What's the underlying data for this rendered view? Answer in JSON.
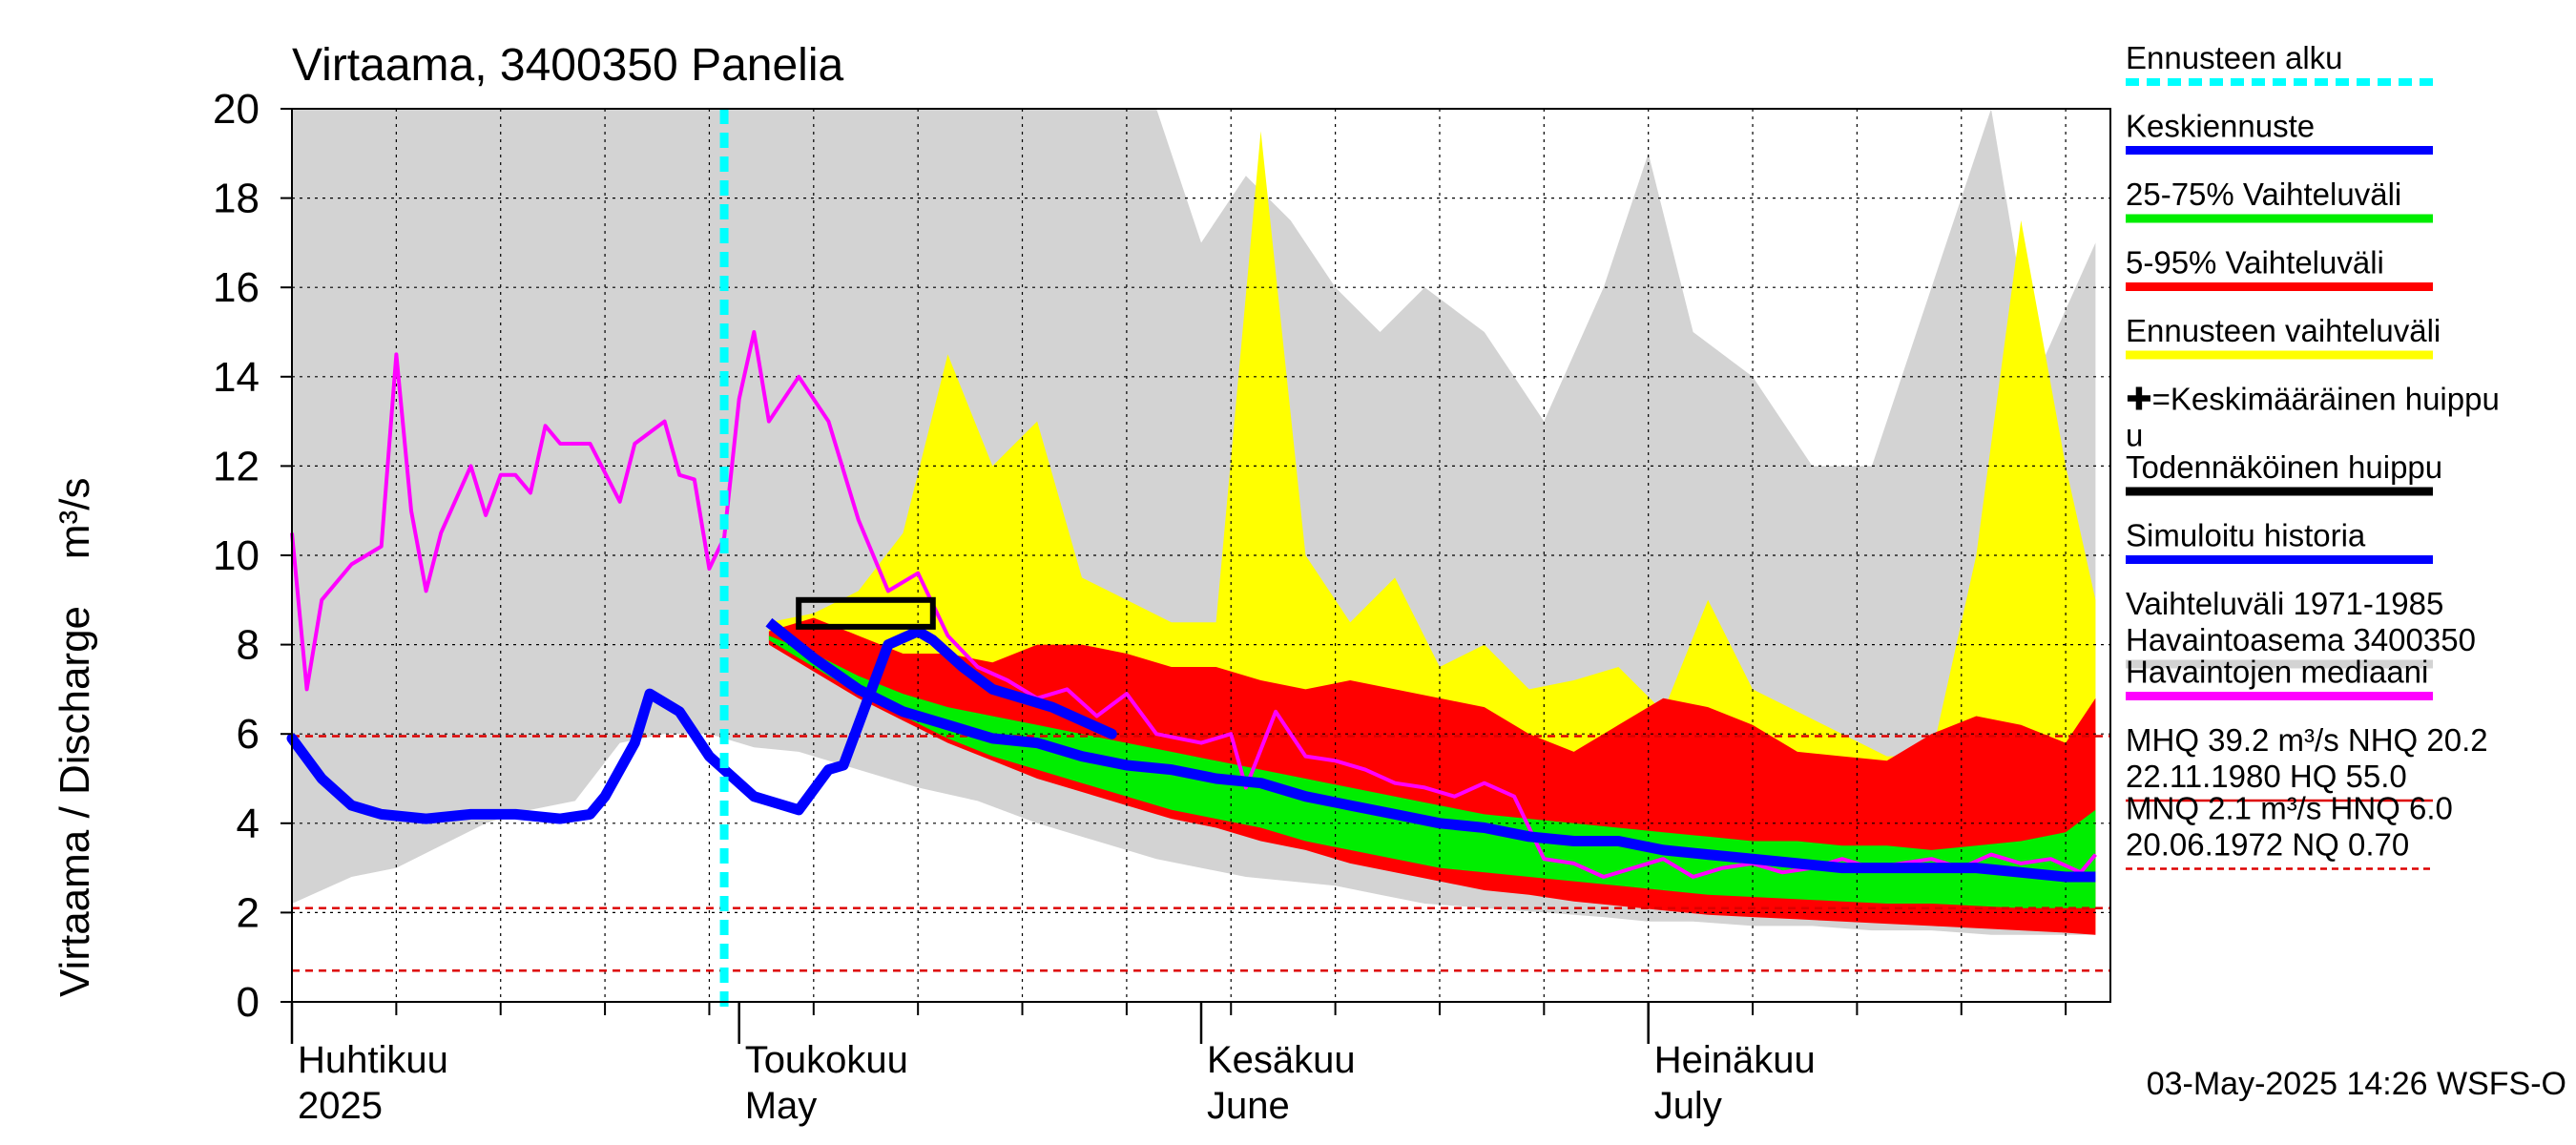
{
  "chart_data": {
    "type": "area",
    "title": "Virtaama, 3400350 Panelia",
    "ylabel": "Virtaama / Discharge    m³/s",
    "ylim": [
      0,
      20
    ],
    "yticks": [
      0,
      2,
      4,
      6,
      8,
      10,
      12,
      14,
      16,
      18,
      20
    ],
    "xlim": [
      "2025-04-01",
      "2025-07-31"
    ],
    "month_labels": [
      {
        "date": "2025-04-01",
        "fi": "Huhtikuu",
        "en": "2025"
      },
      {
        "date": "2025-05-01",
        "fi": "Toukokuu",
        "en": "May"
      },
      {
        "date": "2025-06-01",
        "fi": "Kesäkuu",
        "en": "June"
      },
      {
        "date": "2025-07-01",
        "fi": "Heinäkuu",
        "en": "July"
      }
    ],
    "forecast_start": "2025-04-30",
    "reference_lines": [
      5.95,
      2.1,
      0.7
    ],
    "probable_peak_box": {
      "x_start": "2025-05-05",
      "x_end": "2025-05-14",
      "y_low": 8.4,
      "y_high": 9.0
    },
    "colors": {
      "history_range": "#d3d3d3",
      "forecast_range": "#ffff00",
      "p5_95": "#ff0000",
      "p25_75": "#00ee00",
      "mean_forecast": "#0000ff",
      "median_obs": "#ff00ff",
      "forecast_start": "#00ffff",
      "reference": "#dd0000",
      "probable_peak": "#000000"
    },
    "series": [
      {
        "name": "Vaihteluväli 1971-1985 Havaintoasema 3400350",
        "role": "history_range",
        "x": [
          "2025-04-01",
          "2025-04-05",
          "2025-04-08",
          "2025-04-11",
          "2025-04-14",
          "2025-04-17",
          "2025-04-20",
          "2025-04-23",
          "2025-04-26",
          "2025-04-29",
          "2025-05-02",
          "2025-05-05",
          "2025-05-09",
          "2025-05-13",
          "2025-05-17",
          "2025-05-21",
          "2025-05-25",
          "2025-05-29",
          "2025-06-01",
          "2025-06-04",
          "2025-06-07",
          "2025-06-10",
          "2025-06-13",
          "2025-06-16",
          "2025-06-20",
          "2025-06-24",
          "2025-06-28",
          "2025-07-01",
          "2025-07-04",
          "2025-07-08",
          "2025-07-12",
          "2025-07-16",
          "2025-07-20",
          "2025-07-24",
          "2025-07-27",
          "2025-07-31"
        ],
        "upper": [
          20,
          20,
          20,
          20,
          20,
          20,
          20,
          20,
          20,
          20,
          20,
          20,
          20,
          20,
          20,
          20,
          20,
          20,
          17,
          18.5,
          17.5,
          16,
          15,
          16,
          15,
          13,
          16,
          19,
          15,
          14,
          12,
          12,
          16,
          20,
          14,
          17
        ],
        "lower": [
          2.2,
          2.8,
          3.0,
          3.5,
          4.0,
          4.3,
          4.5,
          5.8,
          6.0,
          6.0,
          5.7,
          5.6,
          5.2,
          4.8,
          4.5,
          4.0,
          3.6,
          3.2,
          3.0,
          2.8,
          2.7,
          2.6,
          2.4,
          2.2,
          2.1,
          2.0,
          1.9,
          1.8,
          1.8,
          1.7,
          1.7,
          1.6,
          1.6,
          1.5,
          1.5,
          1.5
        ]
      },
      {
        "name": "Ennusteen vaihteluväli",
        "role": "forecast_range",
        "x": [
          "2025-05-03",
          "2025-05-06",
          "2025-05-09",
          "2025-05-12",
          "2025-05-15",
          "2025-05-18",
          "2025-05-21",
          "2025-05-24",
          "2025-05-27",
          "2025-05-30",
          "2025-06-02",
          "2025-06-05",
          "2025-06-08",
          "2025-06-11",
          "2025-06-14",
          "2025-06-17",
          "2025-06-20",
          "2025-06-23",
          "2025-06-26",
          "2025-06-29",
          "2025-07-02",
          "2025-07-05",
          "2025-07-08",
          "2025-07-11",
          "2025-07-14",
          "2025-07-17",
          "2025-07-20",
          "2025-07-23",
          "2025-07-26",
          "2025-07-29",
          "2025-07-31"
        ],
        "upper": [
          8.5,
          8.7,
          9.2,
          10.5,
          14.5,
          12.0,
          13.0,
          9.5,
          9.0,
          8.5,
          8.5,
          19.5,
          10.0,
          8.5,
          9.5,
          7.5,
          8.0,
          7.0,
          7.2,
          7.5,
          6.5,
          9.0,
          7.0,
          6.5,
          6.0,
          5.5,
          5.5,
          10.0,
          17.5,
          12.0,
          9.0
        ],
        "lower": [
          8.1,
          7.6,
          7.0,
          6.4,
          5.9,
          5.5,
          5.1,
          4.8,
          4.5,
          4.2,
          4.0,
          3.7,
          3.5,
          3.2,
          3.0,
          2.8,
          2.6,
          2.4,
          2.3,
          2.2,
          2.1,
          2.0,
          1.95,
          1.9,
          1.85,
          1.8,
          1.75,
          1.7,
          1.65,
          1.6,
          1.6
        ]
      },
      {
        "name": "5-95% Vaihteluväli",
        "role": "p5_95",
        "x": [
          "2025-05-03",
          "2025-05-06",
          "2025-05-09",
          "2025-05-12",
          "2025-05-15",
          "2025-05-18",
          "2025-05-21",
          "2025-05-24",
          "2025-05-27",
          "2025-05-30",
          "2025-06-02",
          "2025-06-05",
          "2025-06-08",
          "2025-06-11",
          "2025-06-14",
          "2025-06-17",
          "2025-06-20",
          "2025-06-23",
          "2025-06-26",
          "2025-06-29",
          "2025-07-02",
          "2025-07-05",
          "2025-07-08",
          "2025-07-11",
          "2025-07-14",
          "2025-07-17",
          "2025-07-20",
          "2025-07-23",
          "2025-07-26",
          "2025-07-29",
          "2025-07-31"
        ],
        "upper": [
          8.3,
          8.6,
          8.2,
          7.8,
          7.8,
          7.6,
          8.0,
          8.0,
          7.8,
          7.5,
          7.5,
          7.2,
          7.0,
          7.2,
          7.0,
          6.8,
          6.6,
          6.0,
          5.6,
          6.2,
          6.8,
          6.6,
          6.2,
          5.6,
          5.5,
          5.4,
          6.0,
          6.4,
          6.2,
          5.8,
          6.8
        ],
        "lower": [
          8.0,
          7.4,
          6.8,
          6.3,
          5.8,
          5.4,
          5.0,
          4.7,
          4.4,
          4.1,
          3.9,
          3.6,
          3.4,
          3.1,
          2.9,
          2.7,
          2.5,
          2.4,
          2.25,
          2.15,
          2.05,
          1.95,
          1.9,
          1.85,
          1.8,
          1.75,
          1.7,
          1.65,
          1.6,
          1.55,
          1.5
        ]
      },
      {
        "name": "25-75% Vaihteluväli",
        "role": "p25_75",
        "x": [
          "2025-05-03",
          "2025-05-06",
          "2025-05-09",
          "2025-05-12",
          "2025-05-15",
          "2025-05-18",
          "2025-05-21",
          "2025-05-24",
          "2025-05-27",
          "2025-05-30",
          "2025-06-02",
          "2025-06-05",
          "2025-06-08",
          "2025-06-11",
          "2025-06-14",
          "2025-06-17",
          "2025-06-20",
          "2025-06-23",
          "2025-06-26",
          "2025-06-29",
          "2025-07-02",
          "2025-07-05",
          "2025-07-08",
          "2025-07-11",
          "2025-07-14",
          "2025-07-17",
          "2025-07-20",
          "2025-07-23",
          "2025-07-26",
          "2025-07-29",
          "2025-07-31"
        ],
        "upper": [
          8.2,
          7.8,
          7.3,
          6.9,
          6.6,
          6.4,
          6.2,
          6.0,
          5.8,
          5.6,
          5.4,
          5.2,
          5.0,
          4.8,
          4.6,
          4.4,
          4.2,
          4.1,
          4.0,
          3.9,
          3.8,
          3.7,
          3.6,
          3.6,
          3.5,
          3.5,
          3.4,
          3.5,
          3.6,
          3.8,
          4.3
        ],
        "lower": [
          8.1,
          7.5,
          6.9,
          6.4,
          5.9,
          5.5,
          5.2,
          4.9,
          4.6,
          4.3,
          4.1,
          3.9,
          3.6,
          3.4,
          3.2,
          3.0,
          2.9,
          2.8,
          2.7,
          2.6,
          2.5,
          2.4,
          2.35,
          2.3,
          2.25,
          2.2,
          2.2,
          2.15,
          2.1,
          2.1,
          2.1
        ]
      },
      {
        "name": "Keskiennuste",
        "role": "mean_forecast",
        "x": [
          "2025-05-03",
          "2025-05-06",
          "2025-05-09",
          "2025-05-12",
          "2025-05-15",
          "2025-05-18",
          "2025-05-21",
          "2025-05-24",
          "2025-05-27",
          "2025-05-30",
          "2025-06-02",
          "2025-06-05",
          "2025-06-08",
          "2025-06-11",
          "2025-06-14",
          "2025-06-17",
          "2025-06-20",
          "2025-06-23",
          "2025-06-26",
          "2025-06-29",
          "2025-07-02",
          "2025-07-05",
          "2025-07-08",
          "2025-07-11",
          "2025-07-14",
          "2025-07-17",
          "2025-07-20",
          "2025-07-23",
          "2025-07-26",
          "2025-07-29",
          "2025-07-31"
        ],
        "y": [
          8.5,
          7.7,
          7.0,
          6.5,
          6.2,
          5.9,
          5.8,
          5.5,
          5.3,
          5.2,
          5.0,
          4.9,
          4.6,
          4.4,
          4.2,
          4.0,
          3.9,
          3.7,
          3.6,
          3.6,
          3.4,
          3.3,
          3.2,
          3.1,
          3.0,
          3.0,
          3.0,
          3.0,
          2.9,
          2.8,
          2.8
        ]
      },
      {
        "name": "Simuloitu historia",
        "role": "simulated_history",
        "x": [
          "2025-04-01",
          "2025-04-03",
          "2025-04-05",
          "2025-04-07",
          "2025-04-10",
          "2025-04-13",
          "2025-04-16",
          "2025-04-19",
          "2025-04-21",
          "2025-04-22",
          "2025-04-24",
          "2025-04-25",
          "2025-04-27",
          "2025-04-29",
          "2025-05-02",
          "2025-05-03",
          "2025-05-05",
          "2025-05-07",
          "2025-05-08",
          "2025-05-11",
          "2025-05-13",
          "2025-05-14",
          "2025-05-16",
          "2025-05-18",
          "2025-05-22",
          "2025-05-26"
        ],
        "y": [
          5.9,
          5.0,
          4.4,
          4.2,
          4.1,
          4.2,
          4.2,
          4.1,
          4.2,
          4.6,
          5.8,
          6.9,
          6.5,
          5.5,
          4.6,
          4.5,
          4.3,
          5.2,
          5.3,
          8.0,
          8.3,
          8.1,
          7.5,
          7.0,
          6.6,
          6.0
        ]
      },
      {
        "name": "Havaintojen mediaani",
        "role": "median_obs",
        "x": [
          "2025-04-01",
          "2025-04-02",
          "2025-04-03",
          "2025-04-05",
          "2025-04-07",
          "2025-04-08",
          "2025-04-09",
          "2025-04-10",
          "2025-04-11",
          "2025-04-13",
          "2025-04-14",
          "2025-04-15",
          "2025-04-16",
          "2025-04-17",
          "2025-04-18",
          "2025-04-19",
          "2025-04-20",
          "2025-04-21",
          "2025-04-23",
          "2025-04-24",
          "2025-04-26",
          "2025-04-27",
          "2025-04-28",
          "2025-04-29",
          "2025-04-30",
          "2025-05-01",
          "2025-05-02",
          "2025-05-03",
          "2025-05-05",
          "2025-05-07",
          "2025-05-09",
          "2025-05-11",
          "2025-05-13",
          "2025-05-15",
          "2025-05-17",
          "2025-05-19",
          "2025-05-21",
          "2025-05-23",
          "2025-05-25",
          "2025-05-27",
          "2025-05-29",
          "2025-06-01",
          "2025-06-03",
          "2025-06-04",
          "2025-06-06",
          "2025-06-08",
          "2025-06-10",
          "2025-06-12",
          "2025-06-14",
          "2025-06-16",
          "2025-06-18",
          "2025-06-20",
          "2025-06-22",
          "2025-06-24",
          "2025-06-26",
          "2025-06-28",
          "2025-06-30",
          "2025-07-02",
          "2025-07-04",
          "2025-07-06",
          "2025-07-08",
          "2025-07-10",
          "2025-07-12",
          "2025-07-14",
          "2025-07-16",
          "2025-07-18",
          "2025-07-20",
          "2025-07-22",
          "2025-07-24",
          "2025-07-26",
          "2025-07-28",
          "2025-07-30",
          "2025-07-31"
        ],
        "y": [
          10.5,
          7.0,
          9.0,
          9.8,
          10.2,
          14.5,
          11.0,
          9.2,
          10.5,
          12.0,
          10.9,
          11.8,
          11.8,
          11.4,
          12.9,
          12.5,
          12.5,
          12.5,
          11.2,
          12.5,
          13.0,
          11.8,
          11.7,
          9.7,
          10.4,
          13.5,
          15.0,
          13.0,
          14.0,
          13.0,
          10.8,
          9.2,
          9.6,
          8.2,
          7.5,
          7.2,
          6.8,
          7.0,
          6.4,
          6.9,
          6.0,
          5.8,
          6.0,
          4.8,
          6.5,
          5.5,
          5.4,
          5.2,
          4.9,
          4.8,
          4.6,
          4.9,
          4.6,
          3.2,
          3.1,
          2.8,
          3.0,
          3.2,
          2.8,
          3.0,
          3.1,
          2.9,
          3.0,
          3.2,
          3.0,
          3.1,
          3.2,
          3.0,
          3.3,
          3.1,
          3.2,
          2.9,
          3.3
        ]
      }
    ],
    "legend": [
      {
        "label": "Ennusteen alku",
        "color": "#00ffff",
        "style": "dashed"
      },
      {
        "label": "Keskiennuste",
        "color": "#0000ff",
        "style": "solid"
      },
      {
        "label": "25-75% Vaihteluväli",
        "color": "#00ee00",
        "style": "solid"
      },
      {
        "label": "5-95% Vaihteluväli",
        "color": "#ff0000",
        "style": "solid"
      },
      {
        "label": "Ennusteen vaihteluväli",
        "color": "#ffff00",
        "style": "solid"
      },
      {
        "label": "✚=Keskimääräinen huippu",
        "label2": "u",
        "color": "",
        "style": "none"
      },
      {
        "label": "Todennäköinen huippu",
        "color": "#000000",
        "style": "solid"
      },
      {
        "label": "Simuloitu historia",
        "color": "#0000ff",
        "style": "solid"
      },
      {
        "label": "Vaihteluväli 1971-1985",
        "label2": " Havaintoasema 3400350",
        "color": "#d3d3d3",
        "style": "solid"
      },
      {
        "label": "Havaintojen mediaani",
        "color": "#ff00ff",
        "style": "solid"
      },
      {
        "label": "MHQ 39.2 m³/s NHQ 20.2",
        "label2": "22.11.1980 HQ 55.0",
        "color": "#dd0000",
        "style": "thin"
      },
      {
        "label": "MNQ  2.1 m³/s HNQ  6.0",
        "label2": "20.06.1972 NQ 0.70",
        "color": "#dd0000",
        "style": "dashed-thin"
      }
    ],
    "footer": "03-May-2025 14:26 WSFS-O"
  }
}
